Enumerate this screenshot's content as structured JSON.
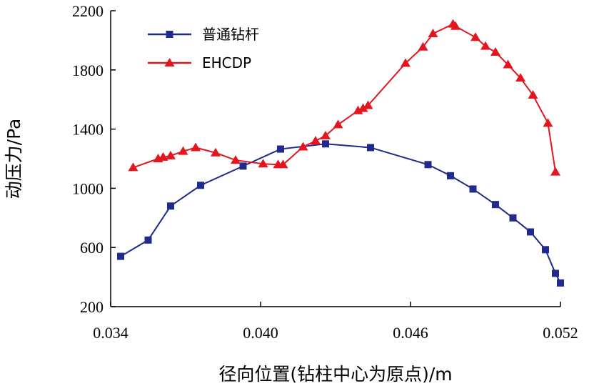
{
  "chart_data": {
    "type": "line",
    "title": "",
    "xlabel": "径向位置(钻柱中心为原点)/m",
    "ylabel": "动压力/Pa",
    "xlim": [
      0.034,
      0.052
    ],
    "ylim": [
      200,
      2200
    ],
    "xticks": [
      0.034,
      0.04,
      0.046,
      0.052
    ],
    "xtick_labels": [
      "0.034",
      "0.040",
      "0.046",
      "0.052"
    ],
    "yticks": [
      200,
      600,
      1000,
      1400,
      1800,
      2200
    ],
    "ytick_labels": [
      "200",
      "600",
      "1000",
      "1400",
      "1800",
      "2200"
    ],
    "grid": false,
    "legend_position": "top-left",
    "series": [
      {
        "name": "普通钻杆",
        "color": "#1f2a8c",
        "marker": "square",
        "x": [
          0.0344,
          0.0355,
          0.0364,
          0.0376,
          0.0393,
          0.0408,
          0.0426,
          0.0444,
          0.0467,
          0.0476,
          0.0485,
          0.0494,
          0.0501,
          0.0508,
          0.0514,
          0.0518,
          0.052
        ],
        "y": [
          540,
          650,
          880,
          1020,
          1150,
          1265,
          1300,
          1275,
          1160,
          1085,
          995,
          890,
          800,
          705,
          585,
          425,
          360
        ]
      },
      {
        "name": "EHCDP",
        "color": "#e4151f",
        "marker": "triangle",
        "x": [
          0.0349,
          0.0359,
          0.0361,
          0.0364,
          0.0369,
          0.0374,
          0.0382,
          0.039,
          0.0401,
          0.0407,
          0.0409,
          0.0417,
          0.0422,
          0.0426,
          0.0431,
          0.0439,
          0.0441,
          0.0443,
          0.0458,
          0.0465,
          0.0469,
          0.0477,
          0.0478,
          0.0486,
          0.049,
          0.0494,
          0.0499,
          0.0504,
          0.0509,
          0.0515,
          0.0518
        ],
        "y": [
          1140,
          1200,
          1210,
          1220,
          1250,
          1275,
          1240,
          1190,
          1165,
          1160,
          1160,
          1280,
          1320,
          1355,
          1430,
          1525,
          1540,
          1560,
          1845,
          1955,
          2045,
          2110,
          2095,
          2020,
          1960,
          1920,
          1835,
          1745,
          1630,
          1440,
          1110
        ]
      }
    ]
  }
}
